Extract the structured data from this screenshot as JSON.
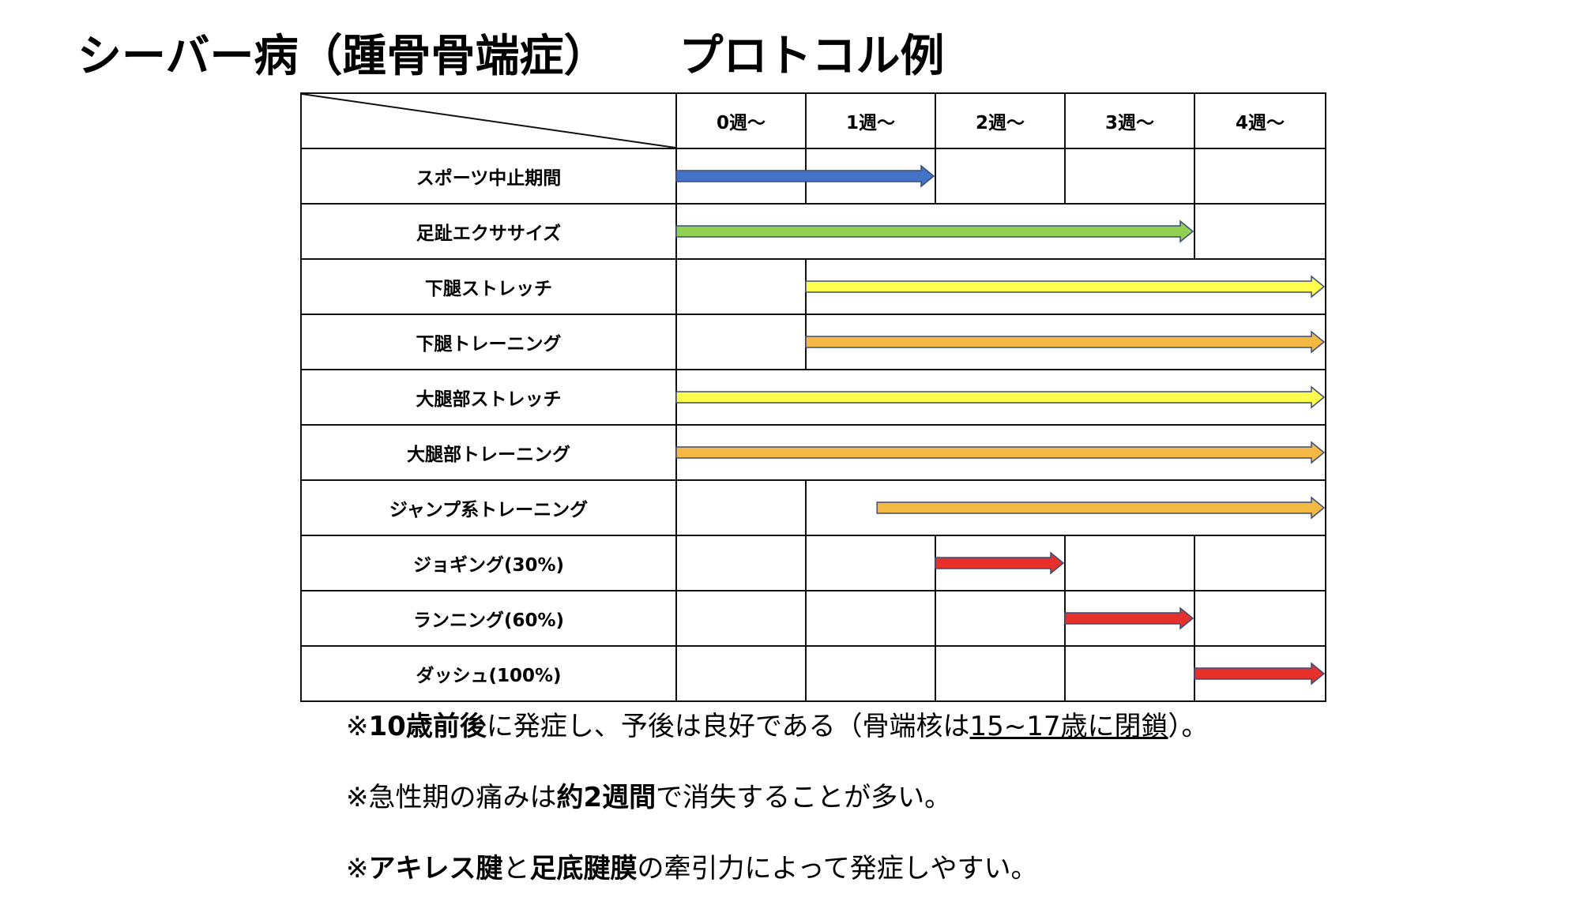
{
  "title": {
    "main": "シーバー病（踵骨骨端症）",
    "sub": "プロトコル例"
  },
  "table": {
    "week_headers": [
      "0週〜",
      "1週〜",
      "2週〜",
      "3週〜",
      "4週〜"
    ],
    "rows": [
      {
        "label": "スポーツ中止期間",
        "start_week": 0,
        "end_week": 2,
        "color": "#4472C4",
        "color_name": "blue"
      },
      {
        "label": "足趾エクササイズ",
        "start_week": 0,
        "end_week": 4,
        "color": "#92D050",
        "color_name": "green"
      },
      {
        "label": "下腿ストレッチ",
        "start_week": 1,
        "end_week": 5,
        "color": "#FFFF4D",
        "color_name": "yellow"
      },
      {
        "label": "下腿トレーニング",
        "start_week": 1,
        "end_week": 5,
        "color": "#F4B942",
        "color_name": "orange"
      },
      {
        "label": "大腿部ストレッチ",
        "start_week": 0,
        "end_week": 5,
        "color": "#FFFF4D",
        "color_name": "yellow"
      },
      {
        "label": "大腿部トレーニング",
        "start_week": 0,
        "end_week": 5,
        "color": "#F4B942",
        "color_name": "orange"
      },
      {
        "label": "ジャンプ系トレーニング",
        "start_week": 1.55,
        "end_week": 5,
        "color": "#F4B942",
        "color_name": "orange"
      },
      {
        "label": "ジョギング(30%)",
        "start_week": 2,
        "end_week": 3,
        "color": "#E8302A",
        "color_name": "red"
      },
      {
        "label": "ランニング(60%)",
        "start_week": 3,
        "end_week": 4,
        "color": "#E8302A",
        "color_name": "red"
      },
      {
        "label": "ダッシュ(100%)",
        "start_week": 4,
        "end_week": 5,
        "color": "#E8302A",
        "color_name": "red"
      }
    ]
  },
  "notes": [
    {
      "prefix": "※",
      "bold": "10歳前後",
      "text1": "に発症し、予後は良好である（骨端核は",
      "underline": "15~17歳に閉鎖",
      "text2": "）。"
    },
    {
      "prefix": "※急性期の痛みは",
      "bold": "約2週間",
      "text1": "で消失することが多い。"
    },
    {
      "prefix": "※",
      "bold": "アキレス腱",
      "text1": "と",
      "bold2": "足底腱膜",
      "text2": "の牽引力によって発症しやすい。"
    }
  ]
}
